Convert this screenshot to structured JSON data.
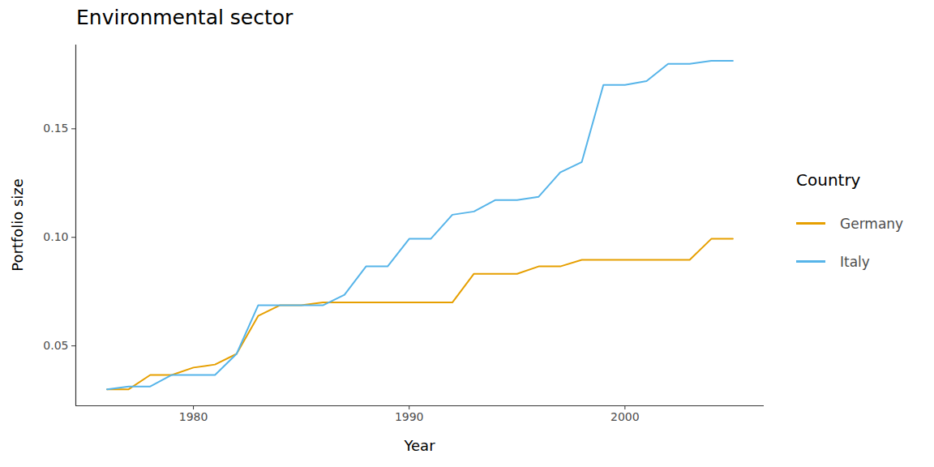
{
  "chart_data": {
    "type": "line",
    "title": "Environmental sector",
    "x_label": "Year",
    "y_label": "Portfolio size",
    "legend_title": "Country",
    "legend": "right",
    "grid": false,
    "x": [
      1976,
      1977,
      1978,
      1979,
      1980,
      1981,
      1982,
      1983,
      1984,
      1985,
      1986,
      1987,
      1988,
      1989,
      1990,
      1991,
      1992,
      1993,
      1994,
      1995,
      1996,
      1997,
      1998,
      1999,
      2000,
      2001,
      2002,
      2003,
      2004,
      2005
    ],
    "series": [
      {
        "name": "Germany",
        "color": "#E69F00",
        "values": [
          0.03,
          0.03,
          0.0366,
          0.0366,
          0.04,
          0.0414,
          0.0463,
          0.0638,
          0.0687,
          0.0687,
          0.07,
          0.07,
          0.07,
          0.07,
          0.07,
          0.07,
          0.07,
          0.0832,
          0.0832,
          0.0832,
          0.0866,
          0.0866,
          0.0896,
          0.0896,
          0.0896,
          0.0896,
          0.0896,
          0.0896,
          0.0993,
          0.0993
        ]
      },
      {
        "name": "Italy",
        "color": "#56B4E9",
        "values": [
          0.03,
          0.0313,
          0.0313,
          0.0366,
          0.0366,
          0.0366,
          0.0463,
          0.0687,
          0.0687,
          0.0687,
          0.0687,
          0.0735,
          0.0866,
          0.0866,
          0.0993,
          0.0993,
          0.1104,
          0.1119,
          0.1172,
          0.1172,
          0.1187,
          0.1299,
          0.1347,
          0.1702,
          0.1702,
          0.172,
          0.1799,
          0.1799,
          0.1813,
          0.1813
        ]
      }
    ],
    "xlim": [
      1974.55,
      2006.45
    ],
    "xticks": [
      1980,
      1990,
      2000
    ],
    "ylim": [
      0.0224,
      0.1886
    ],
    "yticks": [
      0.05,
      {
        "value": 0.1,
        "label": "0.10"
      },
      0.15
    ]
  }
}
